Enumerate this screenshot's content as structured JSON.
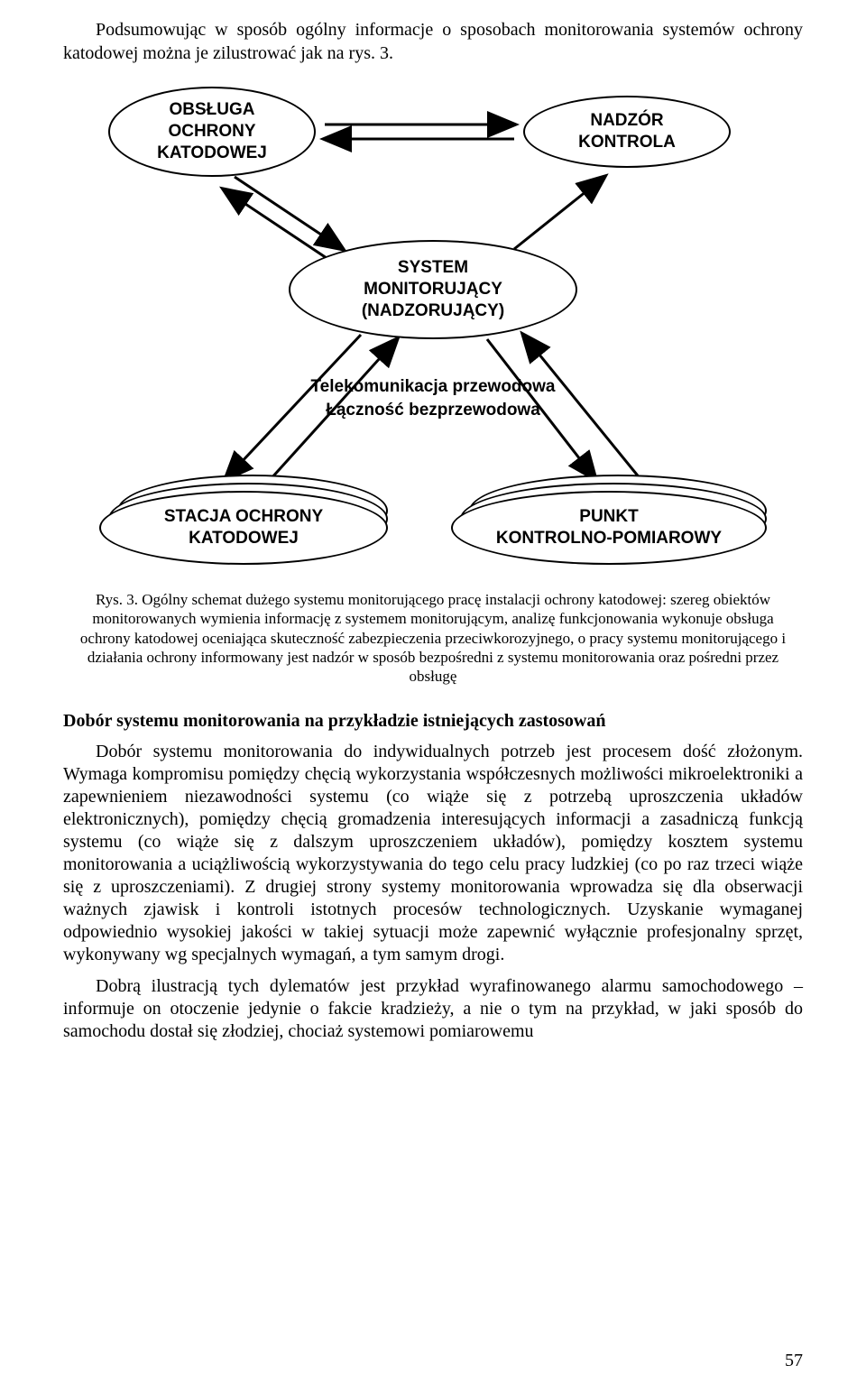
{
  "intro": "Podsumowując w sposób ogólny informacje o sposobach monitorowania systemów ochrony katodowej można je zilustrować jak na rys. 3.",
  "diagram": {
    "node_top_left": "OBSŁUGA\nOCHRONY\nKATODOWEJ",
    "node_top_right": "NADZÓR\nKONTROLA",
    "node_center": "SYSTEM\nMONITORUJĄCY\n(NADZORUJĄCY)",
    "mid_text": "Telekomunikacja przewodowa\nŁączność bezprzewodowa",
    "node_bottom_left": "STACJA OCHRONY\nKATODOWEJ",
    "node_bottom_right": "PUNKT\nKONTROLNO-POMIAROWY",
    "stroke": "#000000",
    "fill": "#ffffff"
  },
  "caption": "Rys. 3. Ogólny schemat dużego systemu monitorującego pracę instalacji ochrony katodowej: szereg obiektów monitorowanych wymienia informację z systemem monitorującym, analizę funkcjonowania wykonuje obsługa ochrony katodowej oceniająca skuteczność zabezpieczenia przeciwkorozyjnego, o pracy systemu monitorującego i działania ochrony informowany jest nadzór w sposób bezpośredni z systemu monitorowania oraz pośredni przez obsługę",
  "section_title": "Dobór systemu monitorowania na przykładzie istniejących zastosowań",
  "para1": "Dobór systemu monitorowania do indywidualnych potrzeb jest procesem dość złożonym. Wymaga kompromisu pomiędzy chęcią wykorzystania współczesnych możliwości mikroelektroniki a zapewnieniem niezawodności systemu (co wiąże się z potrzebą uproszczenia układów elektronicznych), pomiędzy chęcią gromadzenia interesujących informacji a zasadniczą funkcją systemu (co wiąże się z dalszym uproszczeniem układów), pomiędzy kosztem systemu monitorowania a uciążliwością wykorzystywania do tego celu pracy ludzkiej (co po raz trzeci wiąże się z uproszczeniami). Z drugiej strony systemy monitorowania wprowadza się dla obserwacji ważnych zjawisk i kontroli istotnych procesów technologicznych. Uzyskanie wymaganej odpowiednio wysokiej jakości w takiej sytuacji może zapewnić wyłącznie profesjonalny sprzęt, wykonywany wg specjalnych wymagań, a tym samym drogi.",
  "para2": "Dobrą ilustracją tych dylematów jest przykład wyrafinowanego alarmu samochodowego – informuje on otoczenie jedynie o fakcie kradzieży, a nie o tym na przykład, w jaki sposób do samochodu dostał się złodziej, chociaż systemowi pomiarowemu",
  "page_number": "57"
}
